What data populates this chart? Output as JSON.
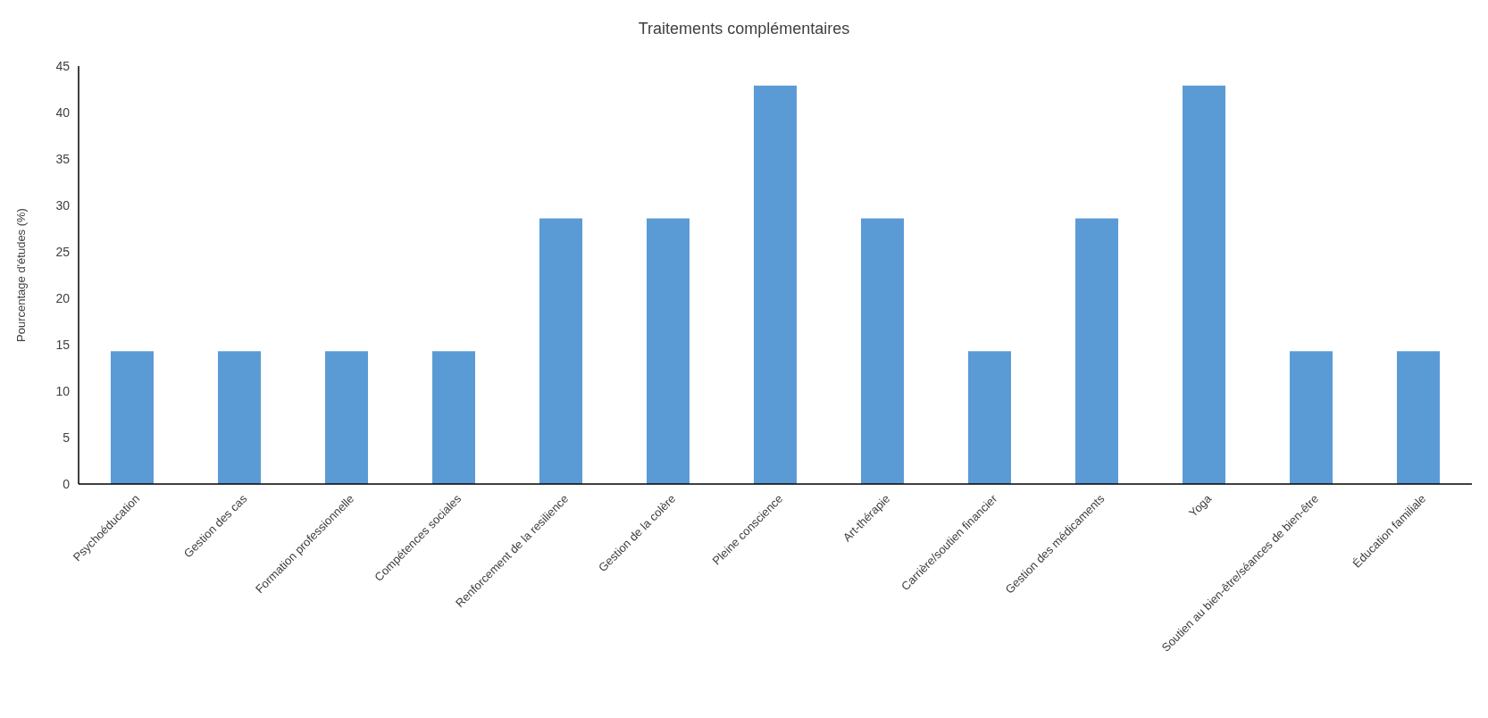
{
  "chart_data": {
    "type": "bar",
    "title": "Traitements complémentaires",
    "ylabel": "Pourcentage d'études (%)",
    "categories": [
      "Psychoéducation",
      "Gestion des cas",
      "Formation professionnelle",
      "Compétences sociales",
      "Renforcement de la resilience",
      "Gestion de la colère",
      "Pleine conscience",
      "Art-thérapie",
      "Carrière/soutien financier",
      "Gestion des médicaments",
      "Yoga",
      "Soutien au bien-être/séances de bien-être",
      "Éducation familiale"
    ],
    "values": [
      14.3,
      14.3,
      14.3,
      14.3,
      28.6,
      28.6,
      42.9,
      28.6,
      14.3,
      28.6,
      42.9,
      14.3,
      14.3
    ],
    "color": "#5b9bd5",
    "ylim": [
      0,
      45
    ],
    "yticks": [
      0,
      5,
      10,
      15,
      20,
      25,
      30,
      35,
      40,
      45
    ],
    "grid": false
  }
}
